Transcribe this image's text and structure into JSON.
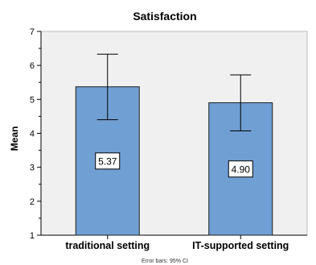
{
  "chart_data": {
    "type": "bar",
    "title": "Satisfaction",
    "ylabel": "Mean",
    "xlabel": "",
    "ylim": [
      1,
      7
    ],
    "yticks": [
      1,
      2,
      3,
      4,
      5,
      6,
      7
    ],
    "minor_ticks": true,
    "grid": false,
    "categories": [
      "traditional setting",
      "IT-supported setting"
    ],
    "values": [
      5.37,
      4.9
    ],
    "value_labels": [
      "5.37",
      "4.90"
    ],
    "error_bars": [
      {
        "low": 4.4,
        "high": 6.33
      },
      {
        "low": 4.07,
        "high": 5.72
      }
    ],
    "note": "Error bars: 95% CI",
    "colors": {
      "plot_background": "#f0f0f0",
      "bar_fill": "#6f9fd3",
      "bar_stroke": "#1f1f1f",
      "axis": "#000000"
    }
  }
}
